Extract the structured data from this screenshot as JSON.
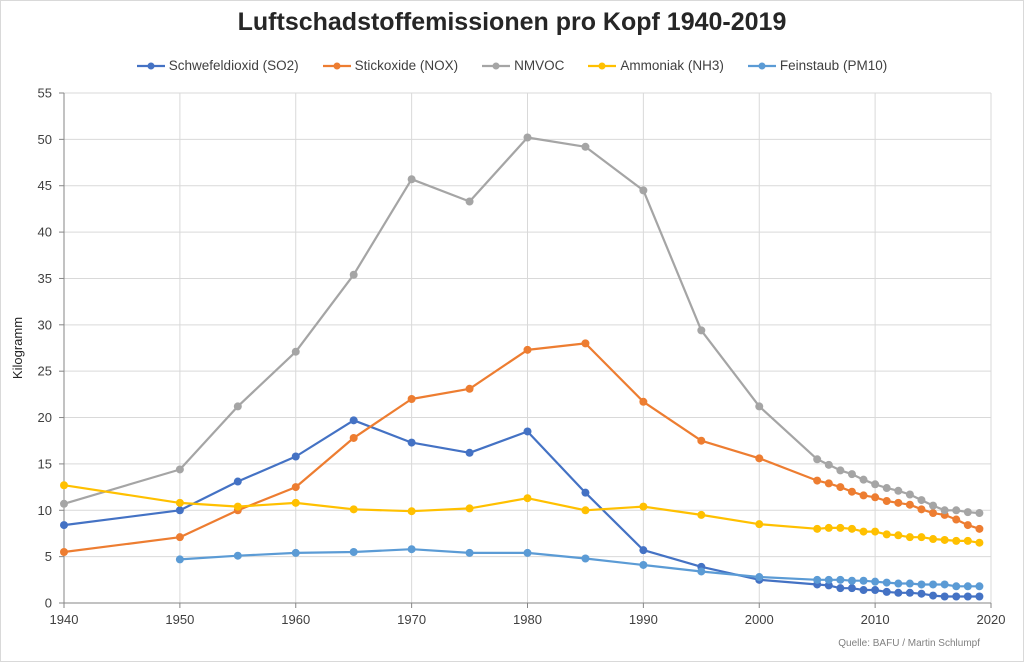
{
  "chart_data": {
    "type": "line",
    "title": "Luftschadstoffemissionen pro Kopf 1940-2019",
    "xlabel": "",
    "ylabel": "Kilogramm",
    "xlim": [
      1940,
      2020
    ],
    "ylim": [
      0,
      55
    ],
    "xticks": [
      1940,
      1950,
      1960,
      1970,
      1980,
      1990,
      2000,
      2010,
      2020
    ],
    "yticks": [
      0,
      5,
      10,
      15,
      20,
      25,
      30,
      35,
      40,
      45,
      50,
      55
    ],
    "grid": true,
    "legend": "top",
    "annotation": "Quelle: BAFU / Martin Schlumpf",
    "series": [
      {
        "name": "Schwefeldioxid (SO2)",
        "color": "#4472c4",
        "x": [
          1940,
          1950,
          1955,
          1960,
          1965,
          1970,
          1975,
          1980,
          1985,
          1990,
          1995,
          2000,
          2005,
          2006,
          2007,
          2008,
          2009,
          2010,
          2011,
          2012,
          2013,
          2014,
          2015,
          2016,
          2017,
          2018,
          2019
        ],
        "y": [
          8.4,
          10.0,
          13.1,
          15.8,
          19.7,
          17.3,
          16.2,
          18.5,
          11.9,
          5.7,
          3.9,
          2.5,
          2.0,
          1.9,
          1.6,
          1.6,
          1.4,
          1.4,
          1.2,
          1.1,
          1.1,
          1.0,
          0.8,
          0.7,
          0.7,
          0.7,
          0.7
        ]
      },
      {
        "name": "Stickoxide (NOX)",
        "color": "#ed7d31",
        "x": [
          1940,
          1950,
          1955,
          1960,
          1965,
          1970,
          1975,
          1980,
          1985,
          1990,
          1995,
          2000,
          2005,
          2006,
          2007,
          2008,
          2009,
          2010,
          2011,
          2012,
          2013,
          2014,
          2015,
          2016,
          2017,
          2018,
          2019
        ],
        "y": [
          5.5,
          7.1,
          10.0,
          12.5,
          17.8,
          22.0,
          23.1,
          27.3,
          28.0,
          21.7,
          17.5,
          15.6,
          13.2,
          12.9,
          12.5,
          12.0,
          11.6,
          11.4,
          11.0,
          10.8,
          10.6,
          10.1,
          9.7,
          9.5,
          9.0,
          8.4,
          8.0
        ]
      },
      {
        "name": "NMVOC",
        "color": "#a5a5a5",
        "x": [
          1940,
          1950,
          1955,
          1960,
          1965,
          1970,
          1975,
          1980,
          1985,
          1990,
          1995,
          2000,
          2005,
          2006,
          2007,
          2008,
          2009,
          2010,
          2011,
          2012,
          2013,
          2014,
          2015,
          2016,
          2017,
          2018,
          2019
        ],
        "y": [
          10.7,
          14.4,
          21.2,
          27.1,
          35.4,
          45.7,
          43.3,
          50.2,
          49.2,
          44.5,
          29.4,
          21.2,
          15.5,
          14.9,
          14.3,
          13.9,
          13.3,
          12.8,
          12.4,
          12.1,
          11.7,
          11.1,
          10.5,
          10.0,
          10.0,
          9.8,
          9.7
        ]
      },
      {
        "name": "Ammoniak (NH3)",
        "color": "#ffc000",
        "x": [
          1940,
          1950,
          1955,
          1960,
          1965,
          1970,
          1975,
          1980,
          1985,
          1990,
          1995,
          2000,
          2005,
          2006,
          2007,
          2008,
          2009,
          2010,
          2011,
          2012,
          2013,
          2014,
          2015,
          2016,
          2017,
          2018,
          2019
        ],
        "y": [
          12.7,
          10.8,
          10.4,
          10.8,
          10.1,
          9.9,
          10.2,
          11.3,
          10.0,
          10.4,
          9.5,
          8.5,
          8.0,
          8.1,
          8.1,
          8.0,
          7.7,
          7.7,
          7.4,
          7.3,
          7.1,
          7.1,
          6.9,
          6.8,
          6.7,
          6.7,
          6.5
        ]
      },
      {
        "name": "Feinstaub (PM10)",
        "color": "#5b9bd5",
        "x": [
          1950,
          1955,
          1960,
          1965,
          1970,
          1975,
          1980,
          1985,
          1990,
          1995,
          2000,
          2005,
          2006,
          2007,
          2008,
          2009,
          2010,
          2011,
          2012,
          2013,
          2014,
          2015,
          2016,
          2017,
          2018,
          2019
        ],
        "y": [
          4.7,
          5.1,
          5.4,
          5.5,
          5.8,
          5.4,
          5.4,
          4.8,
          4.1,
          3.4,
          2.8,
          2.5,
          2.5,
          2.5,
          2.4,
          2.4,
          2.3,
          2.2,
          2.1,
          2.1,
          2.0,
          2.0,
          2.0,
          1.8,
          1.8,
          1.8
        ]
      }
    ]
  }
}
